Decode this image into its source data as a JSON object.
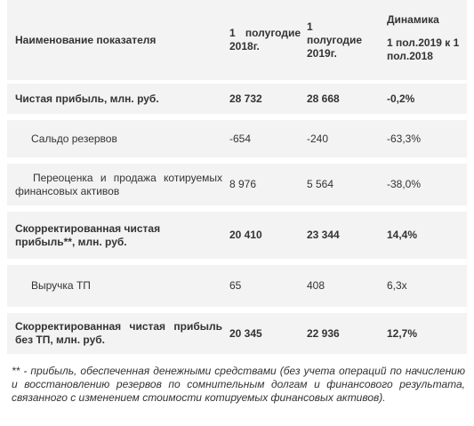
{
  "table": {
    "header": [
      "Наименование показателя",
      "1 полугодие 2018г.",
      "1 полугодие 2019г.",
      "Динамика",
      "1 пол.2019 к 1 пол.2018"
    ],
    "rows": [
      [
        "Чистая прибыль, млн. руб.",
        "28 732",
        "28 668",
        "-0,2%"
      ],
      [
        "Сальдо резервов",
        "-654",
        "-240",
        "-63,3%"
      ],
      [
        "Переоценка и продажа котируемых финансовых активов",
        "8 976",
        "5 564",
        "-38,0%"
      ],
      [
        "Скорректированная чистая прибыль**, млн. руб.",
        "20 410",
        "23 344",
        "14,4%"
      ],
      [
        "Выручка ТП",
        "65",
        "408",
        "6,3х"
      ],
      [
        "Скорректированная чистая прибыль без ТП, млн. руб.",
        "20 345",
        "22 936",
        "12,7%"
      ]
    ]
  },
  "footnote": "** - прибыль, обеспеченная денежными средствами (без учета операций по начислению и восстановлению резервов по сомнительным долгам и финансового результата, связанного с изменением стоимости котируемых финансовых активов)."
}
